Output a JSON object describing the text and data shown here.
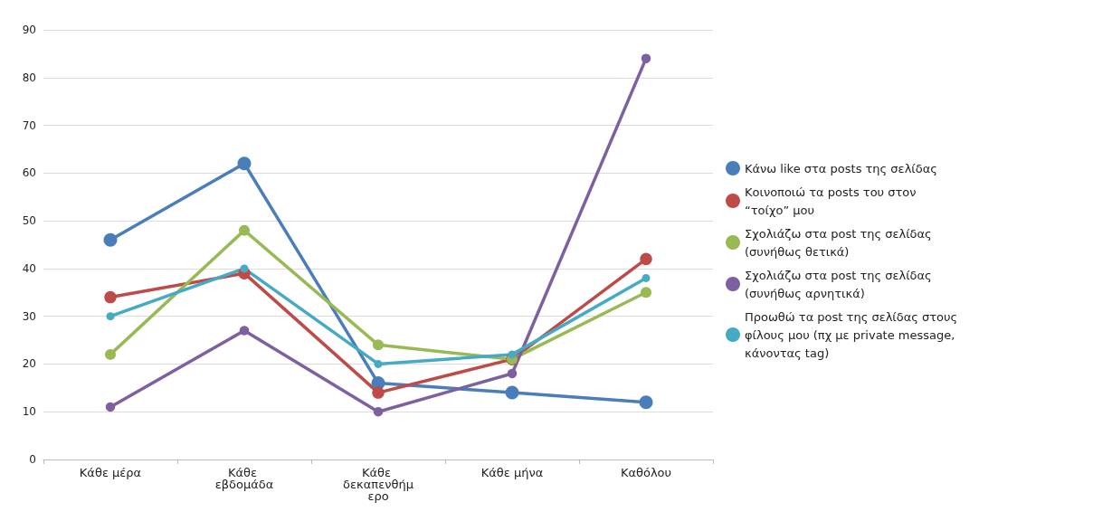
{
  "chart_data": {
    "type": "line",
    "categories": [
      "Κάθε μέρα",
      "Κάθε εβδομάδα",
      "Κάθε δεκαπενθήμερο",
      "Κάθε μήνα",
      "Καθόλου"
    ],
    "ylim": [
      0,
      90
    ],
    "yticks": [
      0,
      10,
      20,
      30,
      40,
      50,
      60,
      70,
      80,
      90
    ],
    "grid": "y",
    "legend": "right",
    "marker": "circle",
    "line_style": "solid",
    "series": [
      {
        "name": "Κάνω like στα posts της σελίδας",
        "color": "#4a7ebb",
        "values": [
          46,
          62,
          16,
          14,
          12
        ]
      },
      {
        "name": "Κοινοποιώ τα posts του στον “τοίχο” μου",
        "color": "#be4b48",
        "values": [
          34,
          39,
          14,
          21,
          42
        ]
      },
      {
        "name": "Σχολιάζω στα post της σελίδας (συνήθως θετικά)",
        "color": "#98b954",
        "values": [
          22,
          48,
          24,
          21,
          35
        ]
      },
      {
        "name": "Σχολιάζω στα post της σελίδας (συνήθως αρνητικά)",
        "color": "#7d60a0",
        "values": [
          11,
          27,
          10,
          18,
          84
        ]
      },
      {
        "name": "Προωθώ τα post της σελίδας στους φίλους μου (πχ με private message, κάνοντας tag)",
        "color": "#46aac5",
        "values": [
          30,
          40,
          20,
          22,
          38
        ]
      }
    ]
  }
}
